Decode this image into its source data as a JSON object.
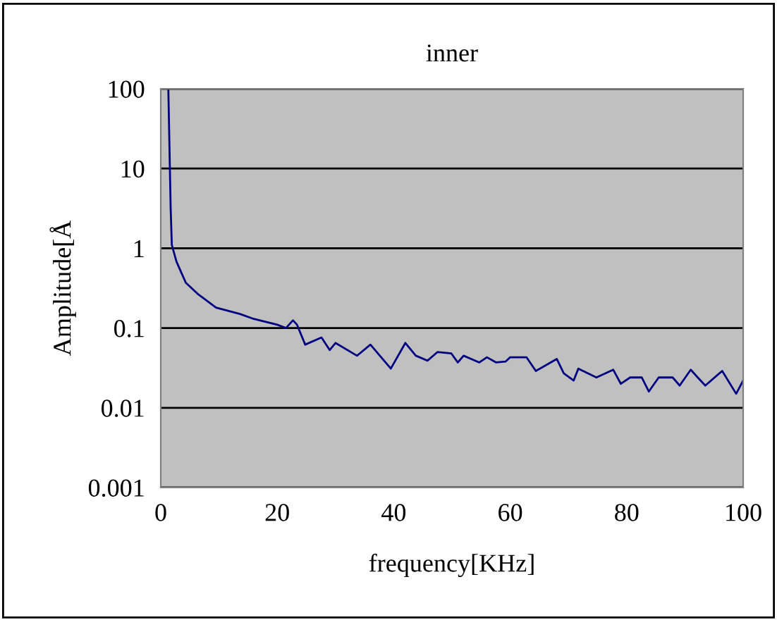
{
  "chart_data": {
    "type": "line",
    "title": "inner",
    "xlabel": "frequency[KHz]",
    "ylabel": "Amplitude[Å",
    "log": "y",
    "grid": "y",
    "xlim": [
      0,
      100
    ],
    "xticks": [
      0,
      20,
      40,
      60,
      80,
      100
    ],
    "ylim": [
      0.001,
      100
    ],
    "yticks": [
      0.001,
      0.01,
      0.1,
      1,
      10,
      100
    ],
    "series": [
      {
        "color": "#000080",
        "x": [
          1.3,
          1.7,
          1.9,
          2.7,
          4.3,
          6.3,
          9.5,
          13.6,
          16,
          20,
          21.5,
          22.7,
          23.4,
          24.8,
          27.6,
          29,
          30,
          33.7,
          36,
          39.5,
          42,
          43.8,
          45.8,
          47.5,
          49.9,
          51,
          52,
          54.7,
          56,
          57.6,
          59.2,
          60,
          62.8,
          64.4,
          68,
          69.2,
          70.9,
          71.7,
          74.8,
          77.7,
          79,
          80.6,
          82.6,
          83.8,
          85.5,
          87.9,
          89.1,
          91,
          92.2,
          93.5,
          96.4,
          98.8,
          100
        ],
        "values": [
          100,
          3.2,
          1.1,
          0.68,
          0.37,
          0.27,
          0.18,
          0.15,
          0.13,
          0.11,
          0.1,
          0.125,
          0.11,
          0.062,
          0.076,
          0.053,
          0.065,
          0.045,
          0.062,
          0.031,
          0.065,
          0.045,
          0.039,
          0.05,
          0.048,
          0.037,
          0.045,
          0.037,
          0.043,
          0.037,
          0.038,
          0.043,
          0.043,
          0.029,
          0.041,
          0.027,
          0.022,
          0.031,
          0.024,
          0.03,
          0.02,
          0.024,
          0.024,
          0.016,
          0.024,
          0.024,
          0.019,
          0.03,
          0.024,
          0.019,
          0.029,
          0.015,
          0.022
        ]
      }
    ]
  }
}
